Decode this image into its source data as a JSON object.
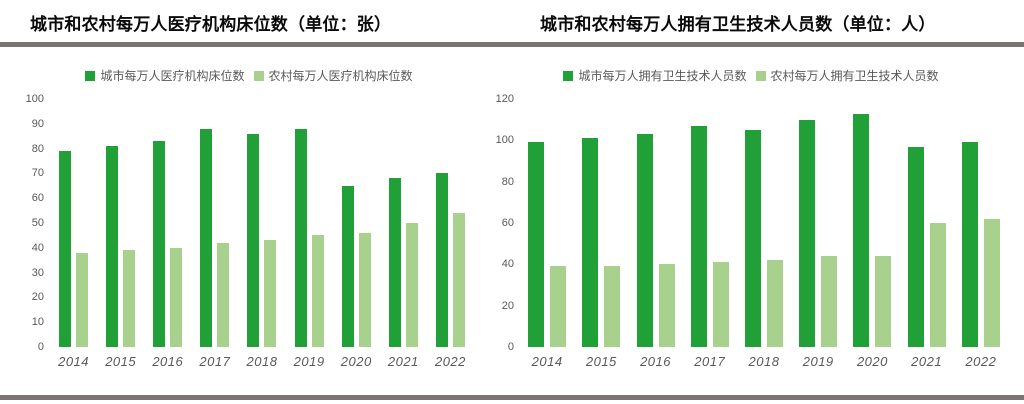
{
  "colors": {
    "urban_green": "#21a038",
    "rural_green": "#a9d18e",
    "divider_gray": "#7a7472",
    "muted_text": "#595959",
    "title_text": "#0a0a0a"
  },
  "chart_data": [
    {
      "type": "bar",
      "title": "城市和农村每万人医疗机构床位数（单位：张）",
      "categories": [
        "2014",
        "2015",
        "2016",
        "2017",
        "2018",
        "2019",
        "2020",
        "2021",
        "2022"
      ],
      "series": [
        {
          "name": "城市每万人医疗机构床位数",
          "color": "#21a038",
          "values": [
            79,
            81,
            83,
            88,
            86,
            88,
            65,
            68,
            70
          ]
        },
        {
          "name": "农村每万人医疗机构床位数",
          "color": "#a9d18e",
          "values": [
            38,
            39,
            40,
            42,
            43,
            45,
            46,
            50,
            54
          ]
        }
      ],
      "ylim": [
        0,
        100
      ],
      "ytick_step": 10,
      "grid": false,
      "legend_position": "top",
      "xlabel": "",
      "ylabel": ""
    },
    {
      "type": "bar",
      "title": "城市和农村每万人拥有卫生技术人员数（单位：人）",
      "categories": [
        "2014",
        "2015",
        "2016",
        "2017",
        "2018",
        "2019",
        "2020",
        "2021",
        "2022"
      ],
      "series": [
        {
          "name": "城市每万人拥有卫生技术人员数",
          "color": "#21a038",
          "values": [
            99,
            101,
            103,
            107,
            105,
            110,
            113,
            97,
            99
          ]
        },
        {
          "name": "农村每万人拥有卫生技术人员数",
          "color": "#a9d18e",
          "values": [
            39,
            39,
            40,
            41,
            42,
            44,
            44,
            60,
            62
          ]
        }
      ],
      "ylim": [
        0,
        120
      ],
      "ytick_step": 20,
      "grid": false,
      "legend_position": "top",
      "xlabel": "",
      "ylabel": ""
    }
  ]
}
